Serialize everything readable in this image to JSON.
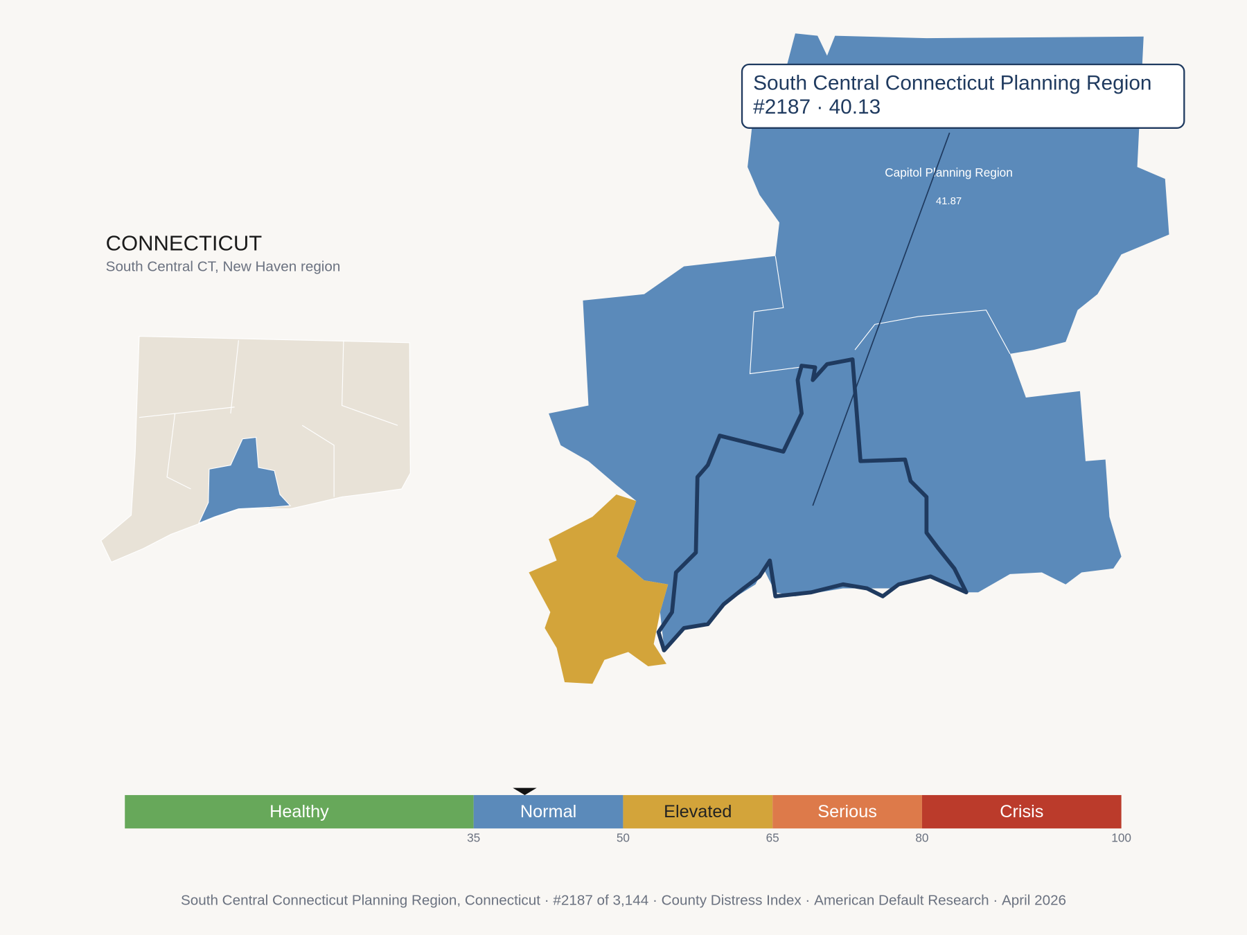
{
  "header": {
    "title": "CONNECTICUT",
    "subtitle": "South Central CT, New Haven region"
  },
  "tooltip": {
    "name": "South Central Connecticut Planning Region",
    "rank": "#2187",
    "separator": " · ",
    "value": 40.13
  },
  "map_label": {
    "name": "Capitol Planning Region",
    "value": "41.87"
  },
  "scale": {
    "range": [
      0,
      100
    ],
    "bands": [
      {
        "label": "Healthy",
        "from": 0,
        "to": 35,
        "color": "#67a85a",
        "text_color": "#ffffff"
      },
      {
        "label": "Normal",
        "from": 35,
        "to": 50,
        "color": "#5b8aba",
        "text_color": "#ffffff"
      },
      {
        "label": "Elevated",
        "from": 50,
        "to": 65,
        "color": "#d3a43a",
        "text_color": "#222222"
      },
      {
        "label": "Serious",
        "from": 65,
        "to": 80,
        "color": "#dd7a4a",
        "text_color": "#ffffff"
      },
      {
        "label": "Crisis",
        "from": 80,
        "to": 100,
        "color": "#bb3b2b",
        "text_color": "#ffffff"
      }
    ],
    "ticks": [
      35,
      50,
      65,
      80,
      100
    ]
  },
  "footer": {
    "items": [
      "South Central Connecticut Planning Region, Connecticut",
      "#2187 of 3,144",
      "County Distress Index",
      "American Default Research",
      "April 2026"
    ],
    "separator": "·"
  }
}
